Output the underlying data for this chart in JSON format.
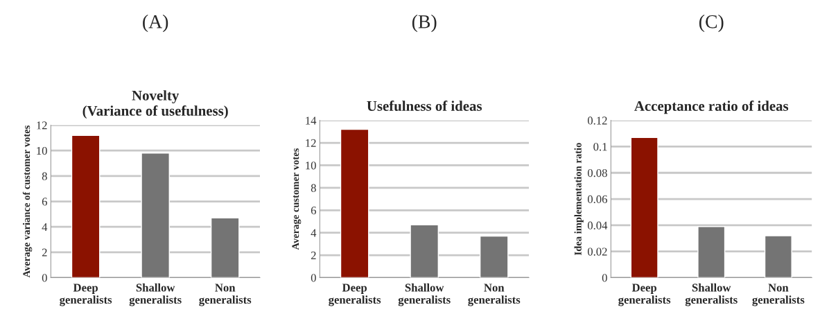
{
  "chart_data": [
    {
      "type": "bar",
      "title": "Novelty\n(Variance of usefulness)",
      "annotations": [
        "(A)"
      ],
      "ylabel": "Average variance of customer votes",
      "categories": [
        "Deep\ngeneralists",
        "Shallow\ngeneralists",
        "Non\ngeneralists"
      ],
      "values": [
        11.2,
        9.8,
        4.7
      ],
      "colors": [
        "#8b1200",
        "#747474",
        "#747474"
      ],
      "ylim": [
        0,
        12
      ],
      "yticks": [
        0,
        2,
        4,
        6,
        8,
        10,
        12
      ],
      "grid": "y"
    },
    {
      "type": "bar",
      "title": "Usefulness of ideas",
      "annotations": [
        "(B)"
      ],
      "ylabel": "Average customer votes",
      "categories": [
        "Deep\ngeneralists",
        "Shallow\ngeneralists",
        "Non\ngeneralists"
      ],
      "values": [
        13.2,
        4.7,
        3.7
      ],
      "colors": [
        "#8b1200",
        "#747474",
        "#747474"
      ],
      "ylim": [
        0,
        14
      ],
      "yticks": [
        0,
        2,
        4,
        6,
        8,
        10,
        12,
        14
      ],
      "grid": "y"
    },
    {
      "type": "bar",
      "title": "Acceptance ratio of ideas",
      "annotations": [
        "(C)"
      ],
      "ylabel": "Idea implementation ratio",
      "categories": [
        "Deep\ngeneralists",
        "Shallow\ngeneralists",
        "Non\ngeneralists"
      ],
      "values": [
        0.107,
        0.039,
        0.032
      ],
      "colors": [
        "#8b1200",
        "#747474",
        "#747474"
      ],
      "ylim": [
        0,
        0.12
      ],
      "yticks": [
        0,
        0.02,
        0.04,
        0.06,
        0.08,
        0.1,
        0.12
      ],
      "grid": "y"
    }
  ]
}
